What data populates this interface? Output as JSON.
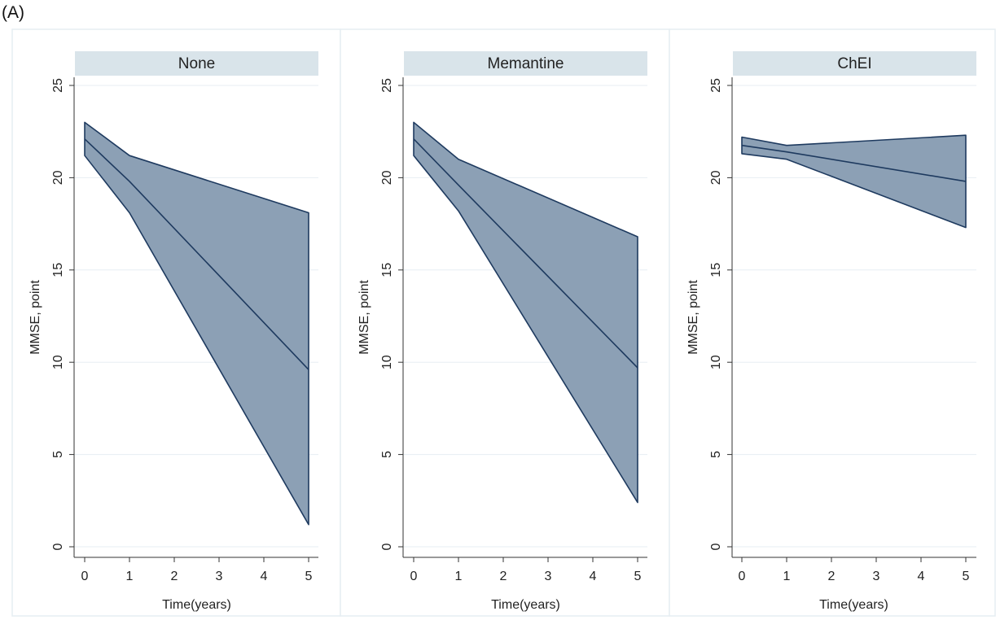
{
  "figure_label": "(A)",
  "colors": {
    "band_fill": "#8ca0b5",
    "line": "#1e3a5f",
    "strip_fill": "#d9e4ea",
    "panel_border": "#e6eef2",
    "gridline": "#e7eef3",
    "axis": "#333333"
  },
  "chart_data": [
    {
      "type": "area",
      "title": "None",
      "xlabel": "Time(years)",
      "ylabel": "MMSE, point",
      "xlim": [
        0,
        5
      ],
      "ylim": [
        0,
        25
      ],
      "xticks": [
        0,
        1,
        2,
        3,
        4,
        5
      ],
      "yticks": [
        0,
        5,
        10,
        15,
        20,
        25
      ],
      "grid": true,
      "x": [
        0,
        1,
        5
      ],
      "series": [
        {
          "name": "upper CI",
          "values": [
            23.0,
            21.2,
            18.1
          ]
        },
        {
          "name": "mean",
          "values": [
            22.1,
            19.8,
            9.6
          ]
        },
        {
          "name": "lower CI",
          "values": [
            21.2,
            18.1,
            1.2
          ]
        }
      ]
    },
    {
      "type": "area",
      "title": "Memantine",
      "xlabel": "Time(years)",
      "ylabel": "MMSE, point",
      "xlim": [
        0,
        5
      ],
      "ylim": [
        0,
        25
      ],
      "xticks": [
        0,
        1,
        2,
        3,
        4,
        5
      ],
      "yticks": [
        0,
        5,
        10,
        15,
        20,
        25
      ],
      "grid": true,
      "x": [
        0,
        1,
        5
      ],
      "series": [
        {
          "name": "upper CI",
          "values": [
            23.0,
            21.0,
            16.8
          ]
        },
        {
          "name": "mean",
          "values": [
            22.1,
            19.6,
            9.7
          ]
        },
        {
          "name": "lower CI",
          "values": [
            21.2,
            18.2,
            2.4
          ]
        }
      ]
    },
    {
      "type": "area",
      "title": "ChEI",
      "xlabel": "Time(years)",
      "ylabel": "MMSE, point",
      "xlim": [
        0,
        5
      ],
      "ylim": [
        0,
        25
      ],
      "xticks": [
        0,
        1,
        2,
        3,
        4,
        5
      ],
      "yticks": [
        0,
        5,
        10,
        15,
        20,
        25
      ],
      "grid": true,
      "x": [
        0,
        1,
        5
      ],
      "series": [
        {
          "name": "upper CI",
          "values": [
            22.2,
            21.75,
            22.3
          ]
        },
        {
          "name": "mean",
          "values": [
            21.75,
            21.4,
            19.8
          ]
        },
        {
          "name": "lower CI",
          "values": [
            21.3,
            21.0,
            17.3
          ]
        }
      ]
    }
  ]
}
